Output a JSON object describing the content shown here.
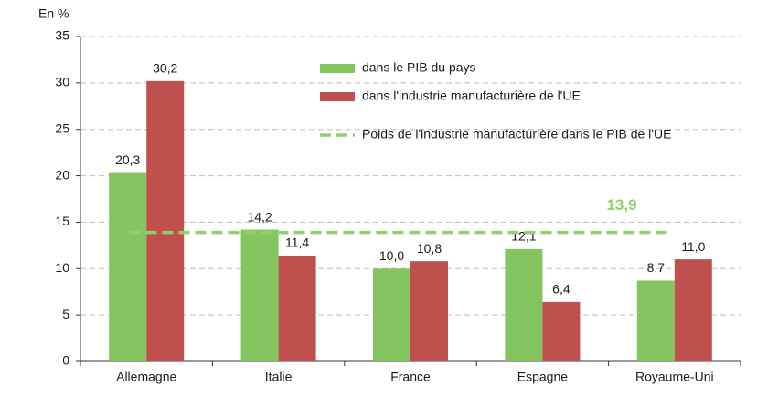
{
  "chart_data": {
    "type": "bar",
    "y_label": "En %",
    "categories": [
      "Allemagne",
      "Italie",
      "France",
      "Espagne",
      "Royaume-Uni"
    ],
    "series": [
      {
        "name": "dans le PIB du pays",
        "color": "#84c55f",
        "values": [
          20.3,
          14.2,
          10.0,
          12.1,
          8.7
        ],
        "value_labels": [
          "20,3",
          "14,2",
          "10,0",
          "12,1",
          "8,7"
        ]
      },
      {
        "name": "dans l'industrie manufacturière de l'UE",
        "color": "#c0504d",
        "values": [
          30.2,
          11.4,
          10.8,
          6.4,
          11.0
        ],
        "value_labels": [
          "30,2",
          "11,4",
          "10,8",
          "6,4",
          "11,0"
        ]
      }
    ],
    "reference": {
      "name": "Poids de l'industrie manufacturière dans le PIB de l'UE",
      "value": 13.9,
      "label": "13,9",
      "color": "#8fd16a"
    },
    "ylim": [
      0,
      35
    ],
    "yticks": [
      0,
      5,
      10,
      15,
      20,
      25,
      30,
      35
    ],
    "grid": true
  }
}
